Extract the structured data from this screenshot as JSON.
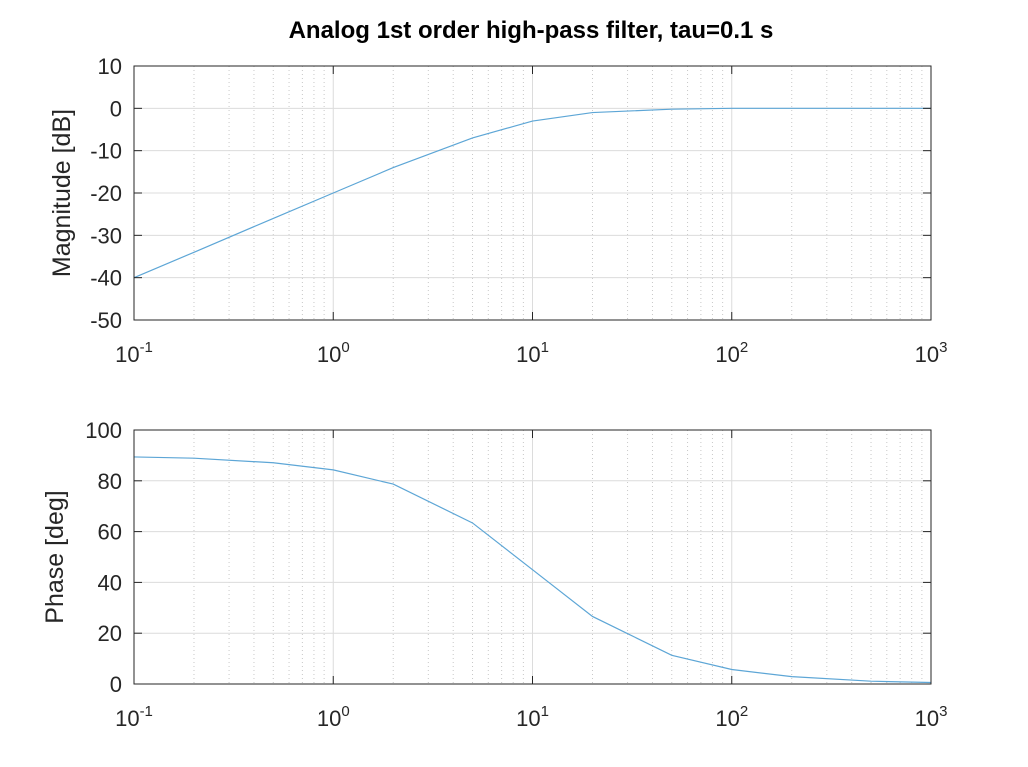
{
  "figure": {
    "title": "Analog 1st order high-pass filter, tau=0.1 s"
  },
  "chart_data": [
    {
      "type": "line",
      "xscale": "log",
      "xlim": [
        0.1,
        1000
      ],
      "ylim": [
        -50,
        10
      ],
      "ylabel": "Magnitude [dB]",
      "xlabel": "",
      "grid": true,
      "minor_grid_x": true,
      "line_color": "#5DA6D6",
      "x_ticks": [
        {
          "base": "10",
          "exp": "-1",
          "value": 0.1
        },
        {
          "base": "10",
          "exp": "0",
          "value": 1
        },
        {
          "base": "10",
          "exp": "1",
          "value": 10
        },
        {
          "base": "10",
          "exp": "2",
          "value": 100
        },
        {
          "base": "10",
          "exp": "3",
          "value": 1000
        }
      ],
      "y_ticks": [
        "10",
        "0",
        "-10",
        "-20",
        "-30",
        "-40",
        "-50"
      ],
      "series": [
        {
          "x": [
            0.1,
            0.2,
            0.5,
            1,
            2,
            5,
            10,
            20,
            50,
            100,
            200,
            500,
            1000
          ],
          "y": [
            -40.0,
            -34.0,
            -26.0,
            -20.0,
            -14.0,
            -7.0,
            -3.0,
            -1.0,
            -0.2,
            0.0,
            0.0,
            0.0,
            0.0
          ]
        }
      ]
    },
    {
      "type": "line",
      "xscale": "log",
      "xlim": [
        0.1,
        1000
      ],
      "ylim": [
        0,
        100
      ],
      "ylabel": "Phase [deg]",
      "xlabel": "",
      "grid": true,
      "minor_grid_x": true,
      "line_color": "#5DA6D6",
      "x_ticks": [
        {
          "base": "10",
          "exp": "-1",
          "value": 0.1
        },
        {
          "base": "10",
          "exp": "0",
          "value": 1
        },
        {
          "base": "10",
          "exp": "1",
          "value": 10
        },
        {
          "base": "10",
          "exp": "2",
          "value": 100
        },
        {
          "base": "10",
          "exp": "3",
          "value": 1000
        }
      ],
      "y_ticks": [
        "100",
        "80",
        "60",
        "40",
        "20",
        "0"
      ],
      "series": [
        {
          "x": [
            0.1,
            0.2,
            0.5,
            1,
            2,
            5,
            10,
            20,
            50,
            100,
            200,
            500,
            1000
          ],
          "y": [
            89.4,
            88.9,
            87.1,
            84.3,
            78.7,
            63.4,
            45.0,
            26.6,
            11.3,
            5.7,
            2.9,
            1.1,
            0.6
          ]
        }
      ]
    }
  ]
}
